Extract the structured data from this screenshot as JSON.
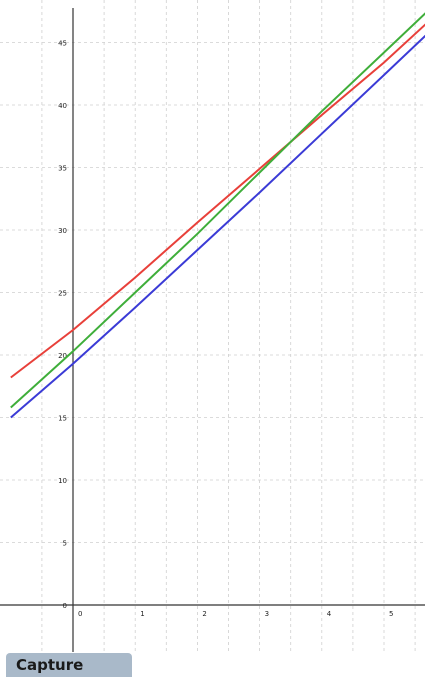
{
  "chart_data": {
    "type": "line",
    "title": "",
    "xlabel": "",
    "ylabel": "",
    "xlim": [
      -1.0,
      5.7
    ],
    "ylim": [
      -3.5,
      47.5
    ],
    "grid": true,
    "x_ticks": [
      "0",
      "1",
      "2",
      "3",
      "4",
      "5"
    ],
    "y_ticks": [
      "0",
      "5",
      "10",
      "15",
      "20",
      "25",
      "30",
      "35",
      "40",
      "45"
    ],
    "series": [
      {
        "color": "#e8403a",
        "x": [
          -1.0,
          0,
          1,
          2,
          3,
          4,
          5,
          5.7
        ],
        "y": [
          18.2,
          22.0,
          26.2,
          30.6,
          34.9,
          39.2,
          43.4,
          46.6
        ]
      },
      {
        "color": "#3fae3a",
        "x": [
          -1.0,
          0,
          1,
          2,
          3,
          4,
          5,
          5.7
        ],
        "y": [
          15.8,
          20.3,
          25.0,
          29.7,
          34.6,
          39.5,
          44.2,
          47.5
        ]
      },
      {
        "color": "#3b3bd6",
        "x": [
          -1.0,
          0,
          1,
          2,
          3,
          4,
          5,
          5.7
        ],
        "y": [
          15.0,
          19.3,
          23.8,
          28.4,
          33.0,
          37.7,
          42.4,
          45.7
        ]
      }
    ]
  },
  "capture_label": "Capture"
}
